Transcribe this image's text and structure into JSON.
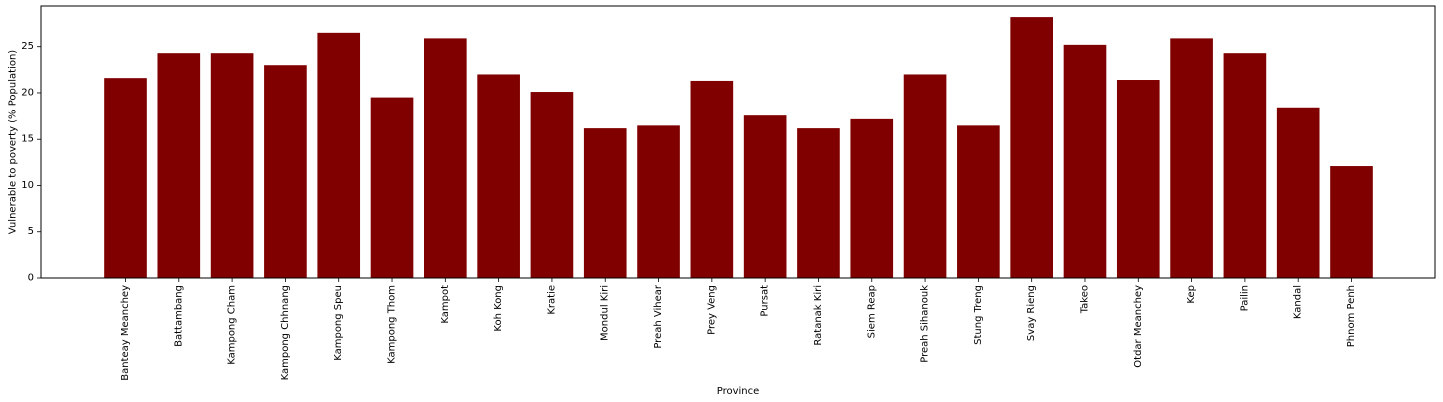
{
  "chart_data": {
    "type": "bar",
    "xlabel": "Province",
    "ylabel": "Vulnerable to poverty (% Population)",
    "ylim": [
      0,
      29.4
    ],
    "yticks": [
      0,
      5,
      10,
      15,
      20,
      25
    ],
    "bar_color": "#800000",
    "grid": false,
    "categories": [
      "Banteay Meanchey",
      "Battambang",
      "Kampong Cham",
      "Kampong Chhnang",
      "Kampong Speu",
      "Kampong Thom",
      "Kampot",
      "Koh Kong",
      "Kratie",
      "Mondul Kiri",
      "Preah Vihear",
      "Prey Veng",
      "Pursat",
      "Ratanak Kiri",
      "Siem Reap",
      "Preah Sihanouk",
      "Stung Treng",
      "Svay Rieng",
      "Takeo",
      "Otdar Meanchey",
      "Kep",
      "Pailin",
      "Kandal",
      "Phnom Penh"
    ],
    "values": [
      21.6,
      24.3,
      24.3,
      23.0,
      26.5,
      19.5,
      25.9,
      22.0,
      20.1,
      16.2,
      16.5,
      21.3,
      17.6,
      16.2,
      17.2,
      22.0,
      16.5,
      28.2,
      25.2,
      21.4,
      25.9,
      24.3,
      18.4,
      12.1
    ]
  }
}
